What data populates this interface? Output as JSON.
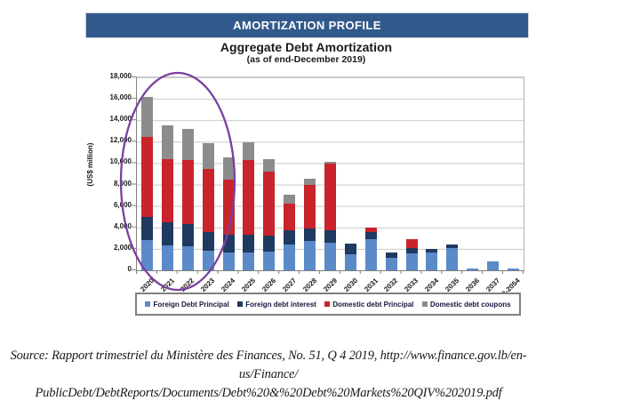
{
  "banner": {
    "title": "AMORTIZATION PROFILE",
    "bg_color": "#31598B"
  },
  "chart_data": {
    "type": "bar",
    "stacked": true,
    "title": "Aggregate Debt Amortization",
    "subtitle": "(as of end-December 2019)",
    "xlabel": "",
    "ylabel": "(US$ million)",
    "ylim": [
      0,
      18000
    ],
    "ytick_step": 2000,
    "ytick_labels": [
      "18,000",
      "16,000",
      "14,000",
      "12,000",
      "10,000",
      "8,000",
      "6,000",
      "4,000",
      "2,000",
      "0"
    ],
    "grid": true,
    "legend_position": "bottom",
    "categories": [
      "2020",
      "2021",
      "2022",
      "2023",
      "2024",
      "2025",
      "2026",
      "2027",
      "2028",
      "2029",
      "2030",
      "2031",
      "2032",
      "2033",
      "2034",
      "2035",
      "2036",
      "2037",
      "2038-2054"
    ],
    "series": [
      {
        "name": "Foreign Debt Principal",
        "color": "#5B8AC9",
        "values": [
          2800,
          2350,
          2200,
          1800,
          1700,
          1700,
          1750,
          2400,
          2700,
          2600,
          1500,
          2900,
          1150,
          1550,
          1650,
          2100,
          150,
          850,
          150
        ]
      },
      {
        "name": "Foreign debt interest",
        "color": "#1E3A60",
        "values": [
          2200,
          2100,
          2100,
          1800,
          1650,
          1650,
          1500,
          1300,
          1200,
          1100,
          950,
          700,
          550,
          500,
          350,
          300,
          0,
          0,
          0
        ]
      },
      {
        "name": "Domestic debt Principal",
        "color": "#C9242B",
        "values": [
          7450,
          5900,
          6000,
          5850,
          5100,
          6900,
          5950,
          2550,
          4100,
          6250,
          0,
          350,
          0,
          850,
          0,
          0,
          0,
          0,
          0
        ]
      },
      {
        "name": "Domestic debt coupons",
        "color": "#8C8C8C",
        "values": [
          3700,
          3150,
          2850,
          2450,
          2100,
          1700,
          1200,
          800,
          550,
          200,
          0,
          0,
          0,
          0,
          0,
          0,
          0,
          0,
          0
        ]
      }
    ],
    "annotation": {
      "shape": "ellipse",
      "color": "#7B3FA0",
      "note": "circles the 2020-2023 bars"
    }
  },
  "source": {
    "line1": "Source: Rapport trimestriel du Ministère des Finances, No. 51, Q 4 2019, http://www.finance.gov.lb/en-us/Finance/",
    "line2": "PublicDebt/DebtReports/Documents/Debt%20&%20Debt%20Markets%20QIV%202019.pdf"
  }
}
